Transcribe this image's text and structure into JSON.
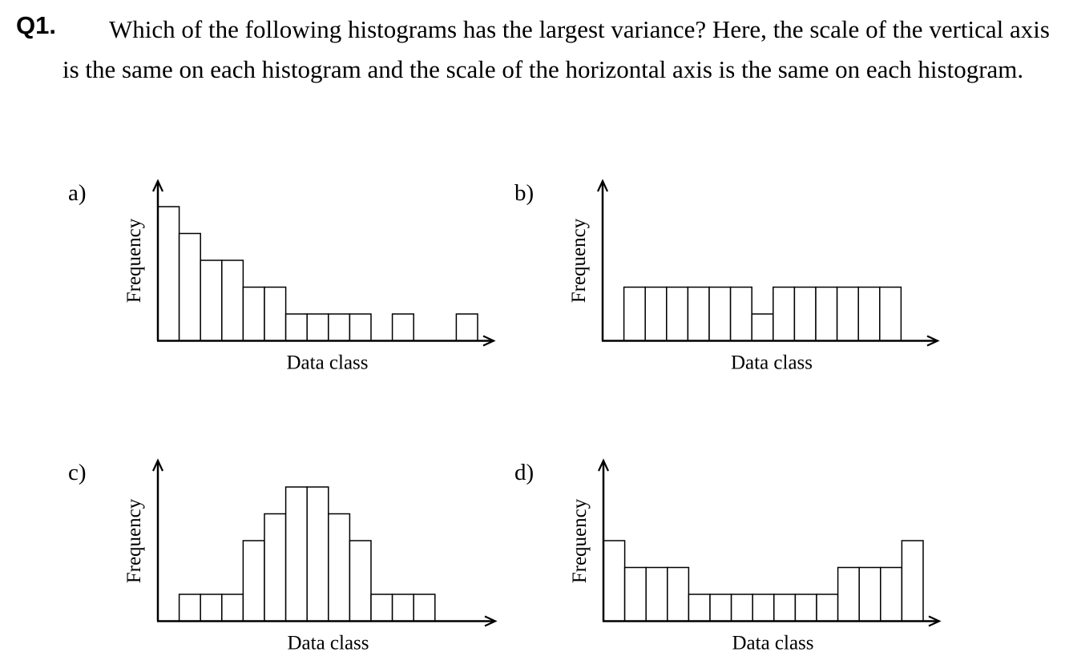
{
  "question": {
    "number": "Q1.",
    "text": "Which of the following histograms has the largest variance? Here, the scale of the vertical axis is the same on each histogram and the scale of the horizontal axis is the same on each histogram."
  },
  "axis_labels": {
    "x": "Data class",
    "y": "Frequency"
  },
  "panels": [
    {
      "id": "a",
      "label": "a)"
    },
    {
      "id": "b",
      "label": "b)"
    },
    {
      "id": "c",
      "label": "c)"
    },
    {
      "id": "d",
      "label": "d)"
    }
  ],
  "chart_data": [
    {
      "type": "bar",
      "title": "a)",
      "xlabel": "Data class",
      "ylabel": "Frequency",
      "categories": [
        1,
        2,
        3,
        4,
        5,
        6,
        7,
        8,
        9,
        10,
        11,
        12,
        13,
        14,
        15
      ],
      "values": [
        5,
        4,
        3,
        3,
        2,
        2,
        1,
        1,
        1,
        1,
        0,
        1,
        0,
        0,
        1
      ],
      "grid": false,
      "ylim": [
        0,
        6
      ]
    },
    {
      "type": "bar",
      "title": "b)",
      "xlabel": "Data class",
      "ylabel": "Frequency",
      "categories": [
        1,
        2,
        3,
        4,
        5,
        6,
        7,
        8,
        9,
        10,
        11,
        12,
        13,
        14
      ],
      "values": [
        0,
        2,
        2,
        2,
        2,
        2,
        2,
        1,
        2,
        2,
        2,
        2,
        2,
        2
      ],
      "grid": false,
      "ylim": [
        0,
        6
      ]
    },
    {
      "type": "bar",
      "title": "c)",
      "xlabel": "Data class",
      "ylabel": "Frequency",
      "categories": [
        1,
        2,
        3,
        4,
        5,
        6,
        7,
        8,
        9,
        10,
        11,
        12,
        13
      ],
      "values": [
        0,
        1,
        1,
        1,
        3,
        4,
        5,
        5,
        4,
        3,
        1,
        1,
        1
      ],
      "grid": false,
      "ylim": [
        0,
        6
      ]
    },
    {
      "type": "bar",
      "title": "d)",
      "xlabel": "Data class",
      "ylabel": "Frequency",
      "categories": [
        1,
        2,
        3,
        4,
        5,
        6,
        7,
        8,
        9,
        10,
        11,
        12,
        13,
        14,
        15
      ],
      "values": [
        3,
        2,
        2,
        2,
        1,
        1,
        1,
        1,
        1,
        1,
        1,
        2,
        2,
        2,
        3
      ],
      "grid": false,
      "ylim": [
        0,
        6
      ]
    }
  ]
}
